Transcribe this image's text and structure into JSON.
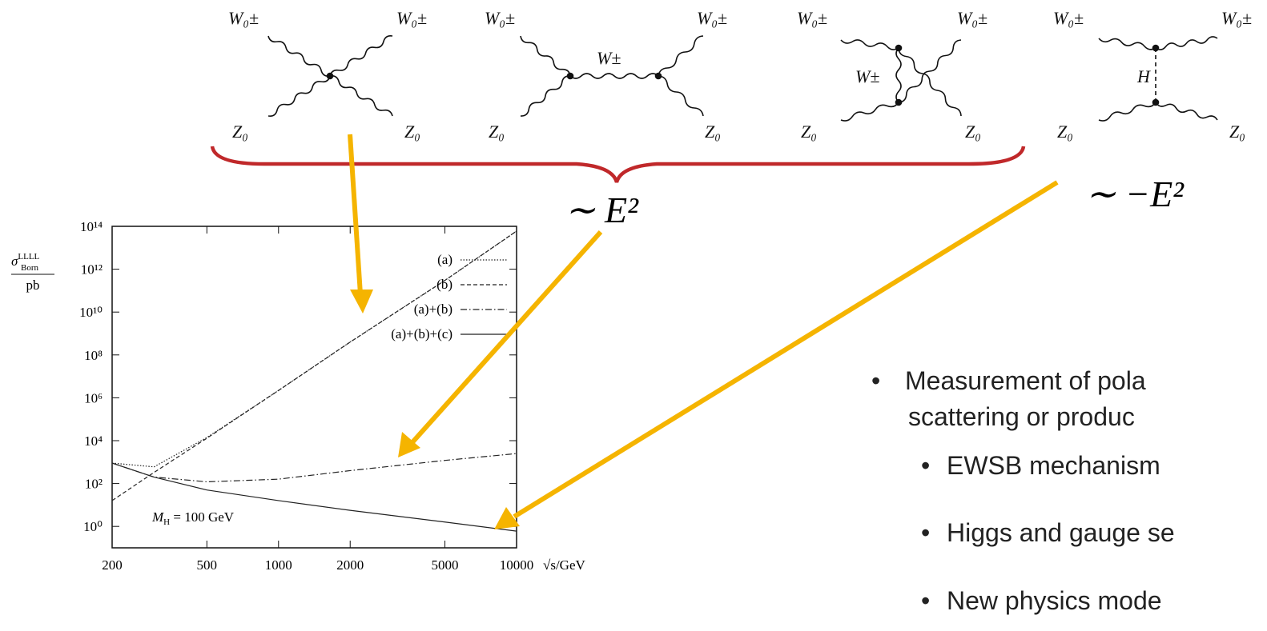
{
  "diagrams": [
    {
      "labels": [
        "W₀±",
        "W₀±",
        "Z₀",
        "Z₀"
      ]
    },
    {
      "labels": [
        "W₀±",
        "W₀±",
        "Z₀",
        "Z₀"
      ],
      "propagator": "W±"
    },
    {
      "labels": [
        "W₀±",
        "W₀±",
        "Z₀",
        "Z₀"
      ],
      "propagator": "W±"
    },
    {
      "labels": [
        "W₀±",
        "W₀±",
        "Z₀",
        "Z₀"
      ],
      "propagator": "H"
    }
  ],
  "scaling": [
    "∼ E²",
    "∼ −E²"
  ],
  "bullets": {
    "main": [
      "Measurement of pola",
      "scattering or produc"
    ],
    "sub": [
      "EWSB mechanism",
      "Higgs and gauge se",
      "New physics mode"
    ]
  },
  "chart_data": {
    "type": "line",
    "ylabel": {
      "symbol": "σ",
      "sup": "LLLL",
      "sub": "Born",
      "unit": "pb"
    },
    "xlabel": "√s/GeV",
    "annotation": {
      "symbol": "M",
      "sub": "H",
      "text": " = 100 GeV"
    },
    "xscale": "log",
    "yscale": "log",
    "xlim": [
      200,
      10000
    ],
    "ylim": [
      0.1,
      100000000000000.0
    ],
    "xticks": [
      200,
      500,
      1000,
      2000,
      5000,
      10000
    ],
    "yticks": [
      {
        "value": 1,
        "label": "10⁰"
      },
      {
        "value": 100,
        "label": "10²"
      },
      {
        "value": 10000,
        "label": "10⁴"
      },
      {
        "value": 1000000,
        "label": "10⁶"
      },
      {
        "value": 100000000,
        "label": "10⁸"
      },
      {
        "value": 10000000000,
        "label": "10¹⁰"
      },
      {
        "value": 1000000000000,
        "label": "10¹²"
      },
      {
        "value": 100000000000000,
        "label": "10¹⁴"
      }
    ],
    "legend": "top-right",
    "x": [
      200,
      300,
      500,
      1000,
      2000,
      5000,
      10000
    ],
    "series": [
      {
        "name": "(a)",
        "color": "#222222",
        "style": "dotted",
        "values": [
          900,
          600,
          14000,
          2200000,
          400000000,
          300000000000,
          60000000000000
        ]
      },
      {
        "name": "(b)",
        "color": "#222222",
        "style": "dashed",
        "values": [
          16,
          330,
          13000,
          2200000,
          400000000,
          300000000000,
          60000000000000
        ]
      },
      {
        "name": "(a)+(b)",
        "color": "#222222",
        "style": "dashdot",
        "values": [
          900,
          200,
          120,
          160,
          400,
          1200,
          2500
        ]
      },
      {
        "name": "(a)+(b)+(c)",
        "color": "#222222",
        "style": "solid",
        "values": [
          900,
          200,
          50,
          16,
          5.6,
          1.6,
          0.6
        ]
      }
    ]
  }
}
